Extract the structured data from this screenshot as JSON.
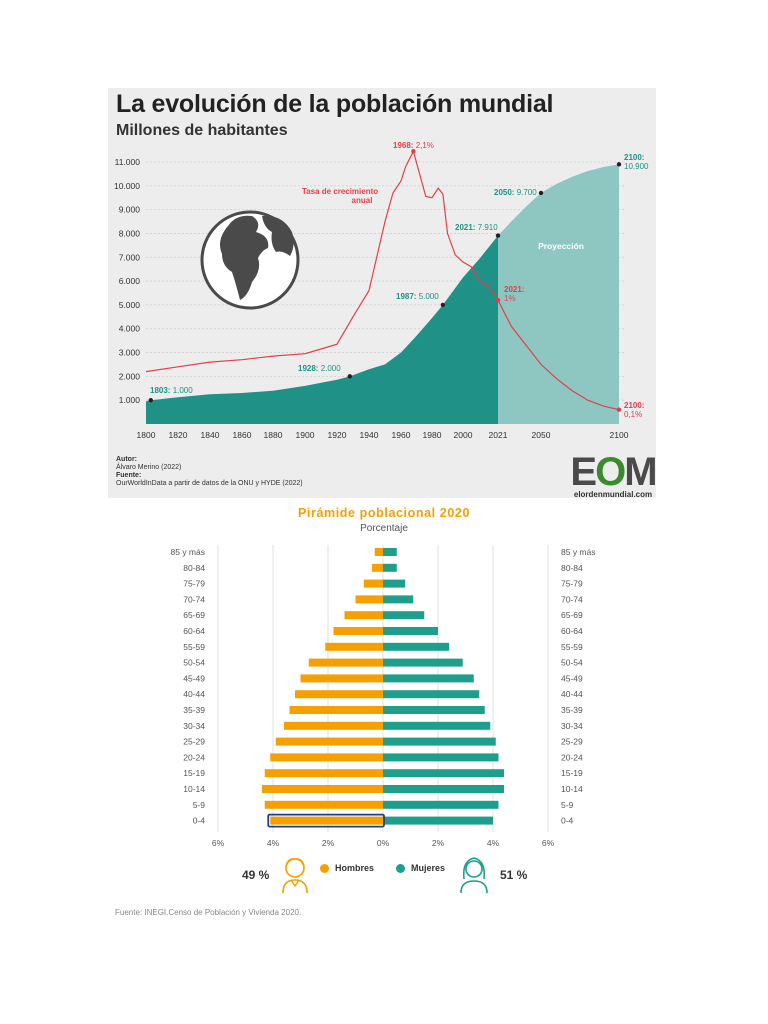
{
  "chart_data": [
    {
      "type": "area",
      "title": "La evolución de la población mundial",
      "subtitle": "Millones de habitantes",
      "x_ticks": [
        "1800",
        "1820",
        "1840",
        "1860",
        "1880",
        "1900",
        "1920",
        "1940",
        "1960",
        "1980",
        "2000",
        "2021",
        "2050",
        "2100"
      ],
      "y_ticks": [
        "1.000",
        "2.000",
        "3.000",
        "4.000",
        "5.000",
        "6.000",
        "7.000",
        "8.000",
        "9.000",
        "10.000",
        "11.000"
      ],
      "ylim": [
        0,
        11000
      ],
      "grid": true,
      "series": [
        {
          "name": "Población",
          "color": "#1f9186",
          "x": [
            1800,
            1803,
            1820,
            1840,
            1860,
            1880,
            1900,
            1920,
            1928,
            1940,
            1950,
            1960,
            1970,
            1980,
            1987,
            2000,
            2010,
            2021
          ],
          "y": [
            950,
            1000,
            1120,
            1250,
            1300,
            1400,
            1600,
            1860,
            2000,
            2300,
            2500,
            3000,
            3700,
            4450,
            5000,
            6150,
            6950,
            7910
          ]
        },
        {
          "name": "Proyección",
          "color": "#8ec7c2",
          "x": [
            2021,
            2030,
            2040,
            2050,
            2060,
            2070,
            2080,
            2090,
            2100
          ],
          "y": [
            7910,
            8500,
            9130,
            9700,
            10080,
            10380,
            10620,
            10790,
            10900
          ]
        },
        {
          "name": "Tasa de crecimiento anual",
          "color": "#e0404a",
          "x": [
            1800,
            1820,
            1840,
            1860,
            1880,
            1900,
            1910,
            1920,
            1930,
            1940,
            1950,
            1955,
            1960,
            1963,
            1968,
            1972,
            1976,
            1980,
            1984,
            1987,
            1990,
            1995,
            2000,
            2005,
            2010,
            2015,
            2021,
            2030,
            2040,
            2050,
            2060,
            2070,
            2080,
            2090,
            2100
          ],
          "y": [
            2200,
            2400,
            2600,
            2700,
            2850,
            2950,
            3150,
            3350,
            4500,
            5600,
            8500,
            9700,
            10200,
            10800,
            11450,
            10500,
            9550,
            9500,
            9900,
            9650,
            8000,
            7100,
            6800,
            6600,
            6000,
            5800,
            5200,
            4100,
            3300,
            2500,
            1900,
            1400,
            1000,
            750,
            600
          ]
        }
      ],
      "annotations": [
        {
          "x": 1803,
          "y": 1000,
          "year": "1803:",
          "value": "1.000",
          "color": "#1f9186"
        },
        {
          "x": 1928,
          "y": 2000,
          "year": "1928:",
          "value": "2.000",
          "color": "#1f9186"
        },
        {
          "x": 1987,
          "y": 5000,
          "year": "1987:",
          "value": "5.000",
          "color": "#1f9186"
        },
        {
          "x": 2021,
          "y": 7910,
          "year": "2021:",
          "value": "7.910",
          "color": "#1f9186"
        },
        {
          "x": 2050,
          "y": 9700,
          "year": "2050:",
          "value": "9.700",
          "color": "#1f9186"
        },
        {
          "x": 2100,
          "y": 10900,
          "year": "2100:",
          "value": "10.900",
          "color": "#1f9186"
        },
        {
          "x": 1968,
          "y": 11450,
          "year": "1968:",
          "value": "2,1%",
          "color": "#e0404a"
        },
        {
          "x": 2021,
          "y": 5200,
          "year": "2021:",
          "value": "1%",
          "color": "#e0404a"
        },
        {
          "x": 2100,
          "y": 600,
          "year": "2100:",
          "value": "0,1%",
          "color": "#e0404a"
        }
      ],
      "labels": {
        "growth_rate": [
          "Tasa de crecimiento",
          "anual"
        ],
        "projection": "Proyección"
      }
    },
    {
      "type": "bar",
      "orientation": "horizontal",
      "title": "Pirámide poblacional 2020",
      "subtitle": "Porcentaje",
      "categories": [
        "85 y más",
        "80-84",
        "75-79",
        "70-74",
        "65-69",
        "60-64",
        "55-59",
        "50-54",
        "45-49",
        "40-44",
        "35-39",
        "30-34",
        "25-29",
        "20-24",
        "15-19",
        "10-14",
        "5-9",
        "0-4"
      ],
      "series": [
        {
          "name": "Hombres",
          "color": "#f5a000",
          "values": [
            0.3,
            0.4,
            0.7,
            1.0,
            1.4,
            1.8,
            2.1,
            2.7,
            3.0,
            3.2,
            3.4,
            3.6,
            3.9,
            4.1,
            4.3,
            4.4,
            4.3,
            4.1
          ]
        },
        {
          "name": "Mujeres",
          "color": "#1e9e8d",
          "values": [
            0.5,
            0.5,
            0.8,
            1.1,
            1.5,
            2.0,
            2.4,
            2.9,
            3.3,
            3.5,
            3.7,
            3.9,
            4.1,
            4.2,
            4.4,
            4.4,
            4.2,
            4.0
          ]
        }
      ],
      "x_ticks": [
        "6%",
        "4%",
        "2%",
        "0%",
        "2%",
        "4%",
        "6%"
      ],
      "xlim": [
        -6,
        6
      ],
      "highlight": "0-4"
    }
  ],
  "credits": {
    "author_label": "Autor:",
    "author": "Álvaro Merino (2022)",
    "source_label": "Fuente:",
    "source": "OurWorldInData a partir de datos de la ONU y HYDE (2022)"
  },
  "logo": {
    "text_left": "E",
    "text_mid": "O",
    "text_right": "M",
    "site": "elordenmundial.com"
  },
  "pyramid_legend": {
    "men_pct": "49 %",
    "women_pct": "51 %",
    "men_label": "Hombres",
    "women_label": "Mujeres"
  },
  "pyramid_source": "Fuente: INEGI.Censo de Población y Vivienda 2020."
}
